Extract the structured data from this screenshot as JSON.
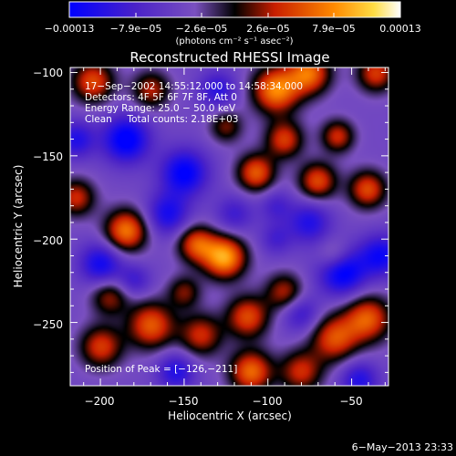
{
  "chart_data": {
    "type": "heatmap",
    "title": "Reconstructed RHESSI Image",
    "xlabel": "Heliocentric X (arcsec)",
    "ylabel": "Heliocentric Y (arcsec)",
    "xlim": [
      -218,
      -28
    ],
    "ylim": [
      -288,
      -97
    ],
    "x_ticks": [
      -200,
      -150,
      -100,
      -50
    ],
    "x_tick_labels": [
      "−200",
      "−150",
      "−100",
      "−50"
    ],
    "y_ticks": [
      -100,
      -150,
      -200,
      -250
    ],
    "y_tick_labels": [
      "−100",
      "−150",
      "−200",
      "−250"
    ],
    "colorbar": {
      "range": [
        -0.00013,
        0.00013
      ],
      "tick_labels": [
        "−0.00013",
        "−7.9e−05",
        "−2.6e−05",
        "2.6e−05",
        "7.9e−05",
        "0.00013"
      ],
      "unit_label": "(photons cm⁻² s⁻¹ asec⁻²)"
    },
    "annotations": [
      "17−Sep−2002 14:55:12.000 to 14:58:34.000",
      "Detectors: 4F 5F 6F 7F 8F, Att 0",
      "Energy Range: 25.0 − 50.0 keV",
      "Clean     Total counts: 2.18E+03"
    ],
    "peak_label": "Position of Peak = [−126,−211]",
    "peak": {
      "x": -126,
      "y": -211
    },
    "blobs": [
      {
        "x": -126,
        "y": -211,
        "v": 1.0,
        "s": 9
      },
      {
        "x": -95,
        "y": -110,
        "v": 0.9,
        "s": 10
      },
      {
        "x": -75,
        "y": -100,
        "v": 0.8,
        "s": 9
      },
      {
        "x": -185,
        "y": -195,
        "v": 0.85,
        "s": 9
      },
      {
        "x": -143,
        "y": -203,
        "v": 0.7,
        "s": 8
      },
      {
        "x": -107,
        "y": -160,
        "v": 0.75,
        "s": 8
      },
      {
        "x": -90,
        "y": -140,
        "v": 0.65,
        "s": 8
      },
      {
        "x": -70,
        "y": -165,
        "v": 0.7,
        "s": 8
      },
      {
        "x": -58,
        "y": -138,
        "v": 0.6,
        "s": 7
      },
      {
        "x": -40,
        "y": -170,
        "v": 0.7,
        "s": 8
      },
      {
        "x": -35,
        "y": -100,
        "v": 0.65,
        "s": 8
      },
      {
        "x": -40,
        "y": -248,
        "v": 0.75,
        "s": 10
      },
      {
        "x": -60,
        "y": -260,
        "v": 0.7,
        "s": 10
      },
      {
        "x": -80,
        "y": -280,
        "v": 0.6,
        "s": 9
      },
      {
        "x": -170,
        "y": -252,
        "v": 0.75,
        "s": 10
      },
      {
        "x": -140,
        "y": -258,
        "v": 0.6,
        "s": 9
      },
      {
        "x": -200,
        "y": -265,
        "v": 0.65,
        "s": 9
      },
      {
        "x": -205,
        "y": -105,
        "v": 0.7,
        "s": 9
      },
      {
        "x": -170,
        "y": -110,
        "v": 0.55,
        "s": 8
      },
      {
        "x": -215,
        "y": -175,
        "v": 0.6,
        "s": 8
      },
      {
        "x": -112,
        "y": -247,
        "v": 0.7,
        "s": 9
      },
      {
        "x": -110,
        "y": -280,
        "v": 0.8,
        "s": 9
      },
      {
        "x": -90,
        "y": -232,
        "v": 0.55,
        "s": 8
      },
      {
        "x": -125,
        "y": -132,
        "v": 0.45,
        "s": 7
      },
      {
        "x": -150,
        "y": -232,
        "v": 0.45,
        "s": 7
      },
      {
        "x": -195,
        "y": -235,
        "v": 0.5,
        "s": 8
      },
      {
        "x": -60,
        "y": -210,
        "v": 0.35,
        "s": 7
      },
      {
        "x": -185,
        "y": -140,
        "v": -0.75,
        "s": 10
      },
      {
        "x": -200,
        "y": -215,
        "v": -0.6,
        "s": 9
      },
      {
        "x": -150,
        "y": -160,
        "v": -0.7,
        "s": 10
      },
      {
        "x": -160,
        "y": -185,
        "v": -0.55,
        "s": 9
      },
      {
        "x": -55,
        "y": -220,
        "v": -0.75,
        "s": 10
      },
      {
        "x": -32,
        "y": -210,
        "v": -0.6,
        "s": 9
      },
      {
        "x": -75,
        "y": -190,
        "v": -0.5,
        "s": 9
      },
      {
        "x": -80,
        "y": -245,
        "v": -0.4,
        "s": 8
      },
      {
        "x": -155,
        "y": -280,
        "v": -0.5,
        "s": 8
      },
      {
        "x": -45,
        "y": -285,
        "v": -0.5,
        "s": 8
      },
      {
        "x": -120,
        "y": -185,
        "v": -0.35,
        "s": 8
      },
      {
        "x": -95,
        "y": -200,
        "v": -0.3,
        "s": 7
      },
      {
        "x": -130,
        "y": -110,
        "v": -0.45,
        "s": 8
      },
      {
        "x": -215,
        "y": -140,
        "v": -0.5,
        "s": 8
      },
      {
        "x": -95,
        "y": -180,
        "v": -0.3,
        "s": 7
      },
      {
        "x": -180,
        "y": -225,
        "v": -0.35,
        "s": 7
      }
    ]
  },
  "footer": {
    "date": "6−May−2013 23:33"
  }
}
